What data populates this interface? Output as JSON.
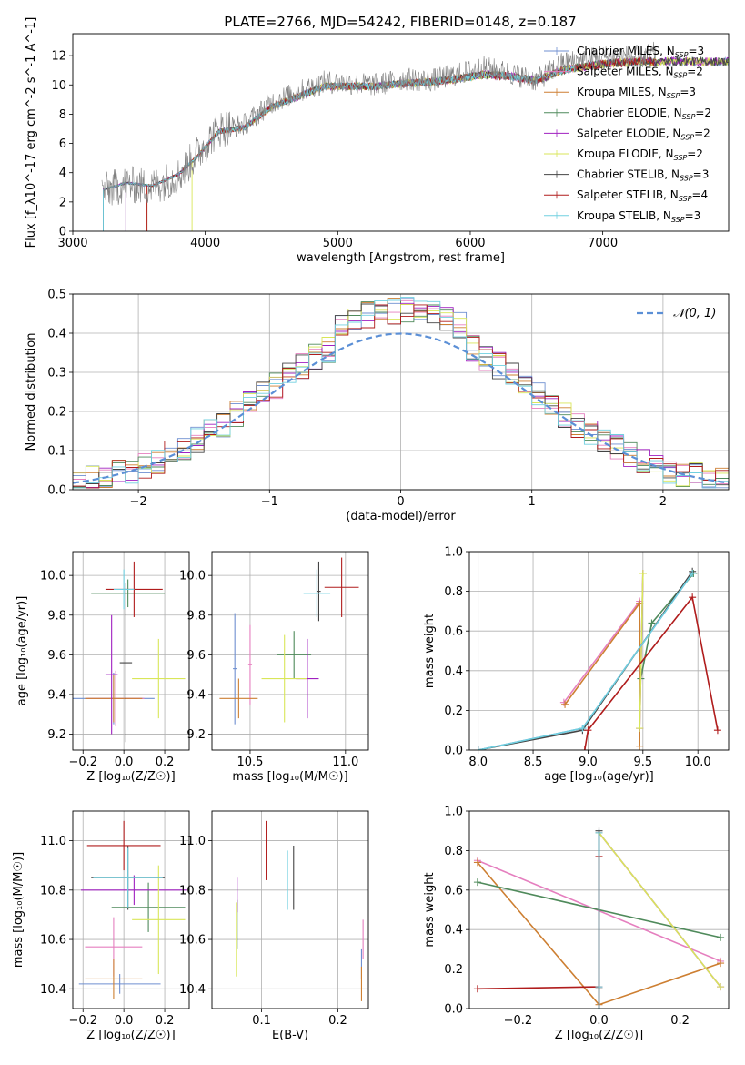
{
  "figure": {
    "title": "PLATE=2766, MJD=54242, FIBERID=0148, z=0.187"
  },
  "legend": {
    "spectrum_entries": [
      {
        "label": "Chabrier MILES, N",
        "sub": "SSP",
        "suffix": "=3",
        "color": "#6f8fd0"
      },
      {
        "label": "Salpeter MILES, N",
        "sub": "SSP",
        "suffix": "=2",
        "color": "#e57fbf"
      },
      {
        "label": "Kroupa MILES, N",
        "sub": "SSP",
        "suffix": "=3",
        "color": "#cd7f32"
      },
      {
        "label": "Chabrier ELODIE, N",
        "sub": "SSP",
        "suffix": "=2",
        "color": "#4f8a5b"
      },
      {
        "label": "Salpeter ELODIE, N",
        "sub": "SSP",
        "suffix": "=2",
        "color": "#a020c0"
      },
      {
        "label": "Kroupa ELODIE, N",
        "sub": "SSP",
        "suffix": "=2",
        "color": "#d9e659"
      },
      {
        "label": "Chabrier STELIB, N",
        "sub": "SSP",
        "suffix": "=3",
        "color": "#444444"
      },
      {
        "label": "Salpeter STELIB, N",
        "sub": "SSP",
        "suffix": "=4",
        "color": "#b01c1c"
      },
      {
        "label": "Kroupa STELIB, N",
        "sub": "SSP",
        "suffix": "=3",
        "color": "#70d0e0"
      }
    ],
    "normal_label": "𝒩(0, 1)"
  },
  "chart_data": [
    {
      "id": "spectrum",
      "type": "line",
      "xlabel": "wavelength [Angstrom, rest frame]",
      "ylabel": "Flux [f_λ10^-17 erg cm^-2 s^-1 A^-1]",
      "xlim": [
        3000,
        7950
      ],
      "ylim": [
        0,
        13.5
      ],
      "xticks": [
        3000,
        4000,
        5000,
        6000,
        7000
      ],
      "yticks": [
        0,
        2,
        4,
        6,
        8,
        10,
        12
      ],
      "data_color": "#808080",
      "data_anchors": [
        [
          3220,
          2.7
        ],
        [
          3400,
          3.2
        ],
        [
          3600,
          3.0
        ],
        [
          3800,
          3.8
        ],
        [
          3950,
          5.4
        ],
        [
          4100,
          7.0
        ],
        [
          4300,
          7.3
        ],
        [
          4500,
          8.8
        ],
        [
          4700,
          9.5
        ],
        [
          4900,
          10.2
        ],
        [
          5100,
          10.1
        ],
        [
          5300,
          10.0
        ],
        [
          5500,
          10.4
        ],
        [
          5700,
          10.3
        ],
        [
          5900,
          10.7
        ],
        [
          6100,
          11.2
        ],
        [
          6300,
          10.8
        ],
        [
          6500,
          10.3
        ],
        [
          6700,
          11.5
        ],
        [
          6900,
          11.8
        ],
        [
          7100,
          12.0
        ],
        [
          7300,
          11.9
        ],
        [
          7400,
          12.2
        ]
      ],
      "model_anchors": [
        [
          3220,
          2.8
        ],
        [
          3400,
          3.3
        ],
        [
          3600,
          3.1
        ],
        [
          3800,
          3.9
        ],
        [
          3950,
          5.2
        ],
        [
          4100,
          6.8
        ],
        [
          4300,
          7.1
        ],
        [
          4500,
          8.5
        ],
        [
          4700,
          9.2
        ],
        [
          4900,
          9.9
        ],
        [
          5100,
          9.9
        ],
        [
          5300,
          9.9
        ],
        [
          5500,
          10.1
        ],
        [
          5700,
          10.2
        ],
        [
          5900,
          10.4
        ],
        [
          6100,
          10.7
        ],
        [
          6300,
          10.6
        ],
        [
          6500,
          10.3
        ],
        [
          6700,
          11.0
        ],
        [
          6900,
          11.3
        ],
        [
          7100,
          11.5
        ],
        [
          7300,
          11.6
        ],
        [
          7400,
          11.6
        ]
      ],
      "model_ranges": [
        [
          3400,
          7950
        ],
        [
          3400,
          7950
        ],
        [
          3560,
          7380
        ],
        [
          3230,
          7950
        ],
        [
          3230,
          7950
        ],
        [
          3900,
          7950
        ],
        [
          3230,
          7950
        ],
        [
          3560,
          7400
        ],
        [
          3230,
          6790
        ]
      ]
    },
    {
      "id": "residuals",
      "type": "histogram",
      "xlabel": "(data-model)/error",
      "ylabel": "Normed distribution",
      "xlim": [
        -2.5,
        2.5
      ],
      "ylim": [
        0,
        0.5
      ],
      "xticks": [
        -2,
        -1,
        0,
        1,
        2
      ],
      "yticks": [
        0.0,
        0.1,
        0.2,
        0.3,
        0.4,
        0.5
      ],
      "bin_width": 0.1,
      "normal_color": "#5b8fd6"
    },
    {
      "id": "age_vs_Z",
      "type": "errorbar",
      "xlabel": "Z [log₁₀(Z/Z☉)]",
      "ylabel": "age  [log₁₀(age/yr)]",
      "xlim": [
        -0.25,
        0.32
      ],
      "ylim": [
        9.12,
        10.12
      ],
      "xticks": [
        -0.2,
        0.0,
        0.2
      ],
      "yticks": [
        9.2,
        9.4,
        9.6,
        9.8,
        10.0
      ],
      "points": [
        {
          "c": 0,
          "x": -0.05,
          "y": 9.38,
          "xe": 0.2,
          "ye": 0.13
        },
        {
          "c": 1,
          "x": -0.04,
          "y": 9.38,
          "xe": 0.14,
          "ye": 0.14
        },
        {
          "c": 2,
          "x": -0.05,
          "y": 9.38,
          "xe": 0.14,
          "ye": 0.12
        },
        {
          "c": 3,
          "x": 0.02,
          "y": 9.91,
          "xe": 0.18,
          "ye": 0.07
        },
        {
          "c": 4,
          "x": -0.06,
          "y": 9.5,
          "xe": 0.03,
          "ye": 0.3
        },
        {
          "c": 5,
          "x": 0.17,
          "y": 9.48,
          "xe": 0.13,
          "ye": 0.2
        },
        {
          "c": 6,
          "x": 0.01,
          "y": 9.56,
          "xe": 0.03,
          "ye": 0.4
        },
        {
          "c": 7,
          "x": 0.05,
          "y": 9.93,
          "xe": 0.14,
          "ye": 0.14
        },
        {
          "c": 8,
          "x": 0.0,
          "y": 9.93,
          "xe": 0.05,
          "ye": 0.1
        }
      ]
    },
    {
      "id": "age_vs_mass",
      "type": "errorbar",
      "xlabel": "mass [log₁₀(M/M☉)]",
      "ylabel": "",
      "xlim": [
        10.3,
        11.12
      ],
      "ylim": [
        9.12,
        10.12
      ],
      "xticks": [
        10.5,
        11.0
      ],
      "yticks": [
        9.2,
        9.4,
        9.6,
        9.8,
        10.0
      ],
      "points": [
        {
          "c": 0,
          "x": 10.42,
          "y": 9.53,
          "xe": 0.01,
          "ye": 0.28
        },
        {
          "c": 1,
          "x": 10.5,
          "y": 9.55,
          "xe": 0.01,
          "ye": 0.2
        },
        {
          "c": 2,
          "x": 10.44,
          "y": 9.38,
          "xe": 0.1,
          "ye": 0.1
        },
        {
          "c": 3,
          "x": 10.73,
          "y": 9.6,
          "xe": 0.09,
          "ye": 0.12
        },
        {
          "c": 4,
          "x": 10.8,
          "y": 9.48,
          "xe": 0.06,
          "ye": 0.2
        },
        {
          "c": 5,
          "x": 10.68,
          "y": 9.48,
          "xe": 0.12,
          "ye": 0.22
        },
        {
          "c": 6,
          "x": 10.86,
          "y": 9.92,
          "xe": 0.01,
          "ye": 0.15
        },
        {
          "c": 7,
          "x": 10.98,
          "y": 9.94,
          "xe": 0.09,
          "ye": 0.15
        },
        {
          "c": 8,
          "x": 10.85,
          "y": 9.91,
          "xe": 0.07,
          "ye": 0.12
        }
      ]
    },
    {
      "id": "weight_vs_age",
      "type": "line",
      "xlabel": "age  [log₁₀(age/yr)]",
      "ylabel": "mass weight",
      "xlim": [
        7.92,
        10.28
      ],
      "ylim": [
        0,
        1
      ],
      "xticks": [
        8.0,
        8.5,
        9.0,
        9.5,
        10.0
      ],
      "yticks": [
        0.0,
        0.2,
        0.4,
        0.6,
        0.8,
        1.0
      ],
      "series": [
        {
          "c": 0,
          "x": [
            8.0,
            8.95,
            9.95
          ],
          "y": [
            0.0,
            0.11,
            0.89
          ]
        },
        {
          "c": 1,
          "x": [
            8.78,
            9.47
          ],
          "y": [
            0.24,
            0.75
          ]
        },
        {
          "c": 2,
          "x": [
            8.79,
            9.47,
            9.47
          ],
          "y": [
            0.23,
            0.74,
            0.02
          ]
        },
        {
          "c": 3,
          "x": [
            9.48,
            9.58,
            9.96
          ],
          "y": [
            0.36,
            0.64,
            0.89
          ]
        },
        {
          "c": 4,
          "x": [
            9.47,
            9.5
          ],
          "y": [
            0.11,
            0.89
          ]
        },
        {
          "c": 5,
          "x": [
            9.47,
            9.5
          ],
          "y": [
            0.11,
            0.89
          ]
        },
        {
          "c": 6,
          "x": [
            8.0,
            8.95,
            9.95
          ],
          "y": [
            0.0,
            0.1,
            0.9
          ]
        },
        {
          "c": 7,
          "x": [
            8.97,
            9.0,
            9.95,
            10.18
          ],
          "y": [
            0.0,
            0.1,
            0.77,
            0.1
          ]
        },
        {
          "c": 8,
          "x": [
            8.0,
            8.95,
            9.95
          ],
          "y": [
            0.0,
            0.11,
            0.89
          ]
        }
      ]
    },
    {
      "id": "mass_vs_Z",
      "type": "errorbar",
      "xlabel": "Z [log₁₀(Z/Z☉)]",
      "ylabel": "mass [log₁₀(M/M☉)]",
      "xlim": [
        -0.25,
        0.32
      ],
      "ylim": [
        10.32,
        11.12
      ],
      "xticks": [
        -0.2,
        0.0,
        0.2
      ],
      "yticks": [
        10.4,
        10.6,
        10.8,
        11.0
      ],
      "points": [
        {
          "c": 0,
          "x": -0.02,
          "y": 10.42,
          "xe": 0.2,
          "ye": 0.04
        },
        {
          "c": 1,
          "x": -0.05,
          "y": 10.57,
          "xe": 0.14,
          "ye": 0.12
        },
        {
          "c": 2,
          "x": -0.05,
          "y": 10.44,
          "xe": 0.14,
          "ye": 0.08
        },
        {
          "c": 3,
          "x": 0.12,
          "y": 10.73,
          "xe": 0.18,
          "ye": 0.1
        },
        {
          "c": 4,
          "x": 0.05,
          "y": 10.8,
          "xe": 0.26,
          "ye": 0.06
        },
        {
          "c": 5,
          "x": 0.17,
          "y": 10.68,
          "xe": 0.13,
          "ye": 0.22
        },
        {
          "c": 6,
          "x": 0.02,
          "y": 10.85,
          "xe": 0.18,
          "ye": 0.13
        },
        {
          "c": 7,
          "x": 0.0,
          "y": 10.98,
          "xe": 0.18,
          "ye": 0.1
        },
        {
          "c": 8,
          "x": 0.02,
          "y": 10.85,
          "xe": 0.17,
          "ye": 0.12
        }
      ]
    },
    {
      "id": "mass_vs_ebv",
      "type": "errorbar",
      "xlabel": "E(B-V)",
      "ylabel": "",
      "xlim": [
        0.035,
        0.24
      ],
      "ylim": [
        10.32,
        11.12
      ],
      "xticks": [
        0.1,
        0.2
      ],
      "yticks": [
        10.4,
        10.6,
        10.8,
        11.0
      ],
      "points": [
        {
          "c": 0,
          "x": 0.231,
          "y": 10.5,
          "xe": 0,
          "ye": 0.06
        },
        {
          "c": 1,
          "x": 0.233,
          "y": 10.6,
          "xe": 0,
          "ye": 0.08
        },
        {
          "c": 2,
          "x": 0.231,
          "y": 10.42,
          "xe": 0,
          "ye": 0.07
        },
        {
          "c": 3,
          "x": 0.068,
          "y": 10.66,
          "xe": 0,
          "ye": 0.1
        },
        {
          "c": 4,
          "x": 0.068,
          "y": 10.78,
          "xe": 0,
          "ye": 0.07
        },
        {
          "c": 5,
          "x": 0.067,
          "y": 10.6,
          "xe": 0,
          "ye": 0.15
        },
        {
          "c": 6,
          "x": 0.142,
          "y": 10.85,
          "xe": 0,
          "ye": 0.13
        },
        {
          "c": 7,
          "x": 0.106,
          "y": 10.96,
          "xe": 0,
          "ye": 0.12
        },
        {
          "c": 8,
          "x": 0.134,
          "y": 10.84,
          "xe": 0,
          "ye": 0.12
        }
      ]
    },
    {
      "id": "weight_vs_Z",
      "type": "line",
      "xlabel": "Z [log₁₀(Z/Z☉)]",
      "ylabel": "mass weight",
      "xlim": [
        -0.32,
        0.32
      ],
      "ylim": [
        0,
        1
      ],
      "xticks": [
        -0.2,
        0.0,
        0.2
      ],
      "yticks": [
        0.0,
        0.2,
        0.4,
        0.6,
        0.8,
        1.0
      ],
      "series": [
        {
          "c": 0,
          "x": [
            0.0,
            0.0,
            0.0
          ],
          "y": [
            0.0,
            0.11,
            0.89
          ]
        },
        {
          "c": 1,
          "x": [
            -0.3,
            0.3
          ],
          "y": [
            0.75,
            0.24
          ]
        },
        {
          "c": 2,
          "x": [
            -0.3,
            0.0,
            0.3
          ],
          "y": [
            0.74,
            0.02,
            0.23
          ]
        },
        {
          "c": 3,
          "x": [
            -0.3,
            0.3
          ],
          "y": [
            0.64,
            0.36
          ]
        },
        {
          "c": 4,
          "x": [
            0.0,
            0.3
          ],
          "y": [
            0.89,
            0.11
          ]
        },
        {
          "c": 5,
          "x": [
            0.0,
            0.3
          ],
          "y": [
            0.89,
            0.11
          ]
        },
        {
          "c": 6,
          "x": [
            0.0,
            0.0,
            0.0
          ],
          "y": [
            0.0,
            0.1,
            0.9
          ]
        },
        {
          "c": 7,
          "x": [
            -0.3,
            0.0,
            0.0,
            0.0
          ],
          "y": [
            0.1,
            0.11,
            0.77,
            0.0
          ]
        },
        {
          "c": 8,
          "x": [
            0.0,
            0.0,
            0.0
          ],
          "y": [
            0.0,
            0.11,
            0.89
          ]
        }
      ]
    }
  ]
}
